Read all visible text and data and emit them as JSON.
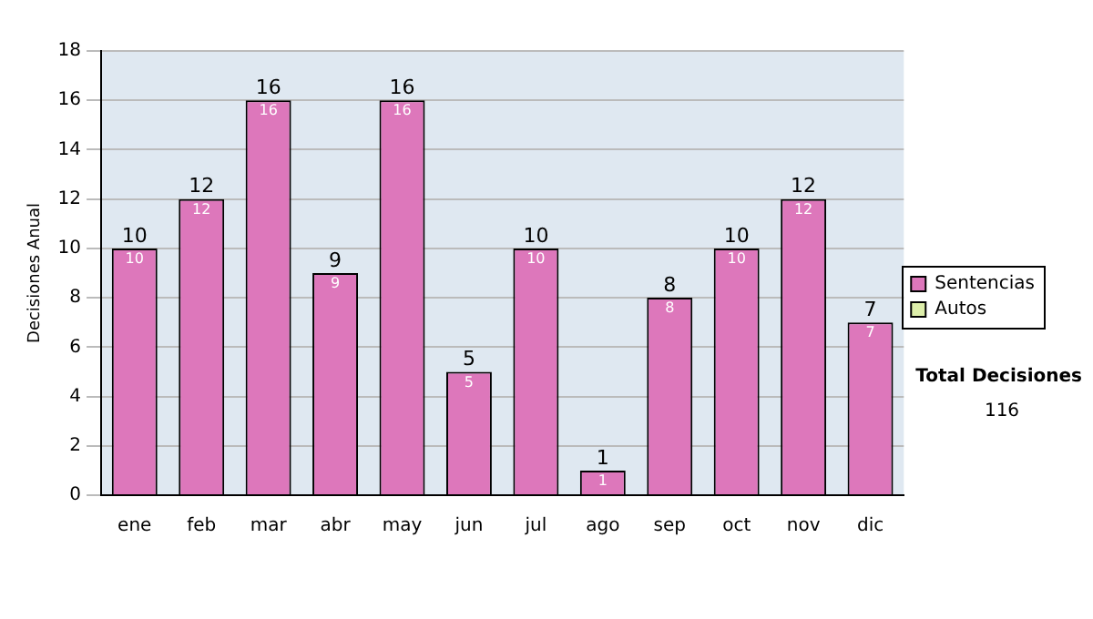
{
  "chart_data": {
    "type": "bar",
    "stacked": true,
    "ylabel": "Decisiones Anual",
    "categories": [
      "ene",
      "feb",
      "mar",
      "abr",
      "may",
      "jun",
      "jul",
      "ago",
      "sep",
      "oct",
      "nov",
      "dic"
    ],
    "series": [
      {
        "name": "Sentencias",
        "color": "#dd77bb",
        "values": [
          10,
          12,
          16,
          9,
          16,
          5,
          10,
          1,
          8,
          10,
          12,
          7
        ],
        "value_labels": [
          "10",
          "12",
          "16",
          "9",
          "16",
          "5",
          "10",
          "1",
          "8",
          "10",
          "12",
          "7"
        ]
      },
      {
        "name": "Autos",
        "color": "#ddeeaa",
        "values": [
          0,
          0,
          0,
          0,
          0,
          0,
          0,
          0,
          0,
          0,
          0,
          0
        ]
      }
    ],
    "totals": [
      "10",
      "12",
      "16",
      "9",
      "16",
      "5",
      "10",
      "1",
      "8",
      "10",
      "12",
      "7"
    ],
    "ylim": [
      0,
      18
    ],
    "yticks": [
      0,
      2,
      4,
      6,
      8,
      10,
      12,
      14,
      16,
      18
    ],
    "grid": "y",
    "legend": "right",
    "annotations": [
      "Total Decisiones",
      "116"
    ]
  }
}
